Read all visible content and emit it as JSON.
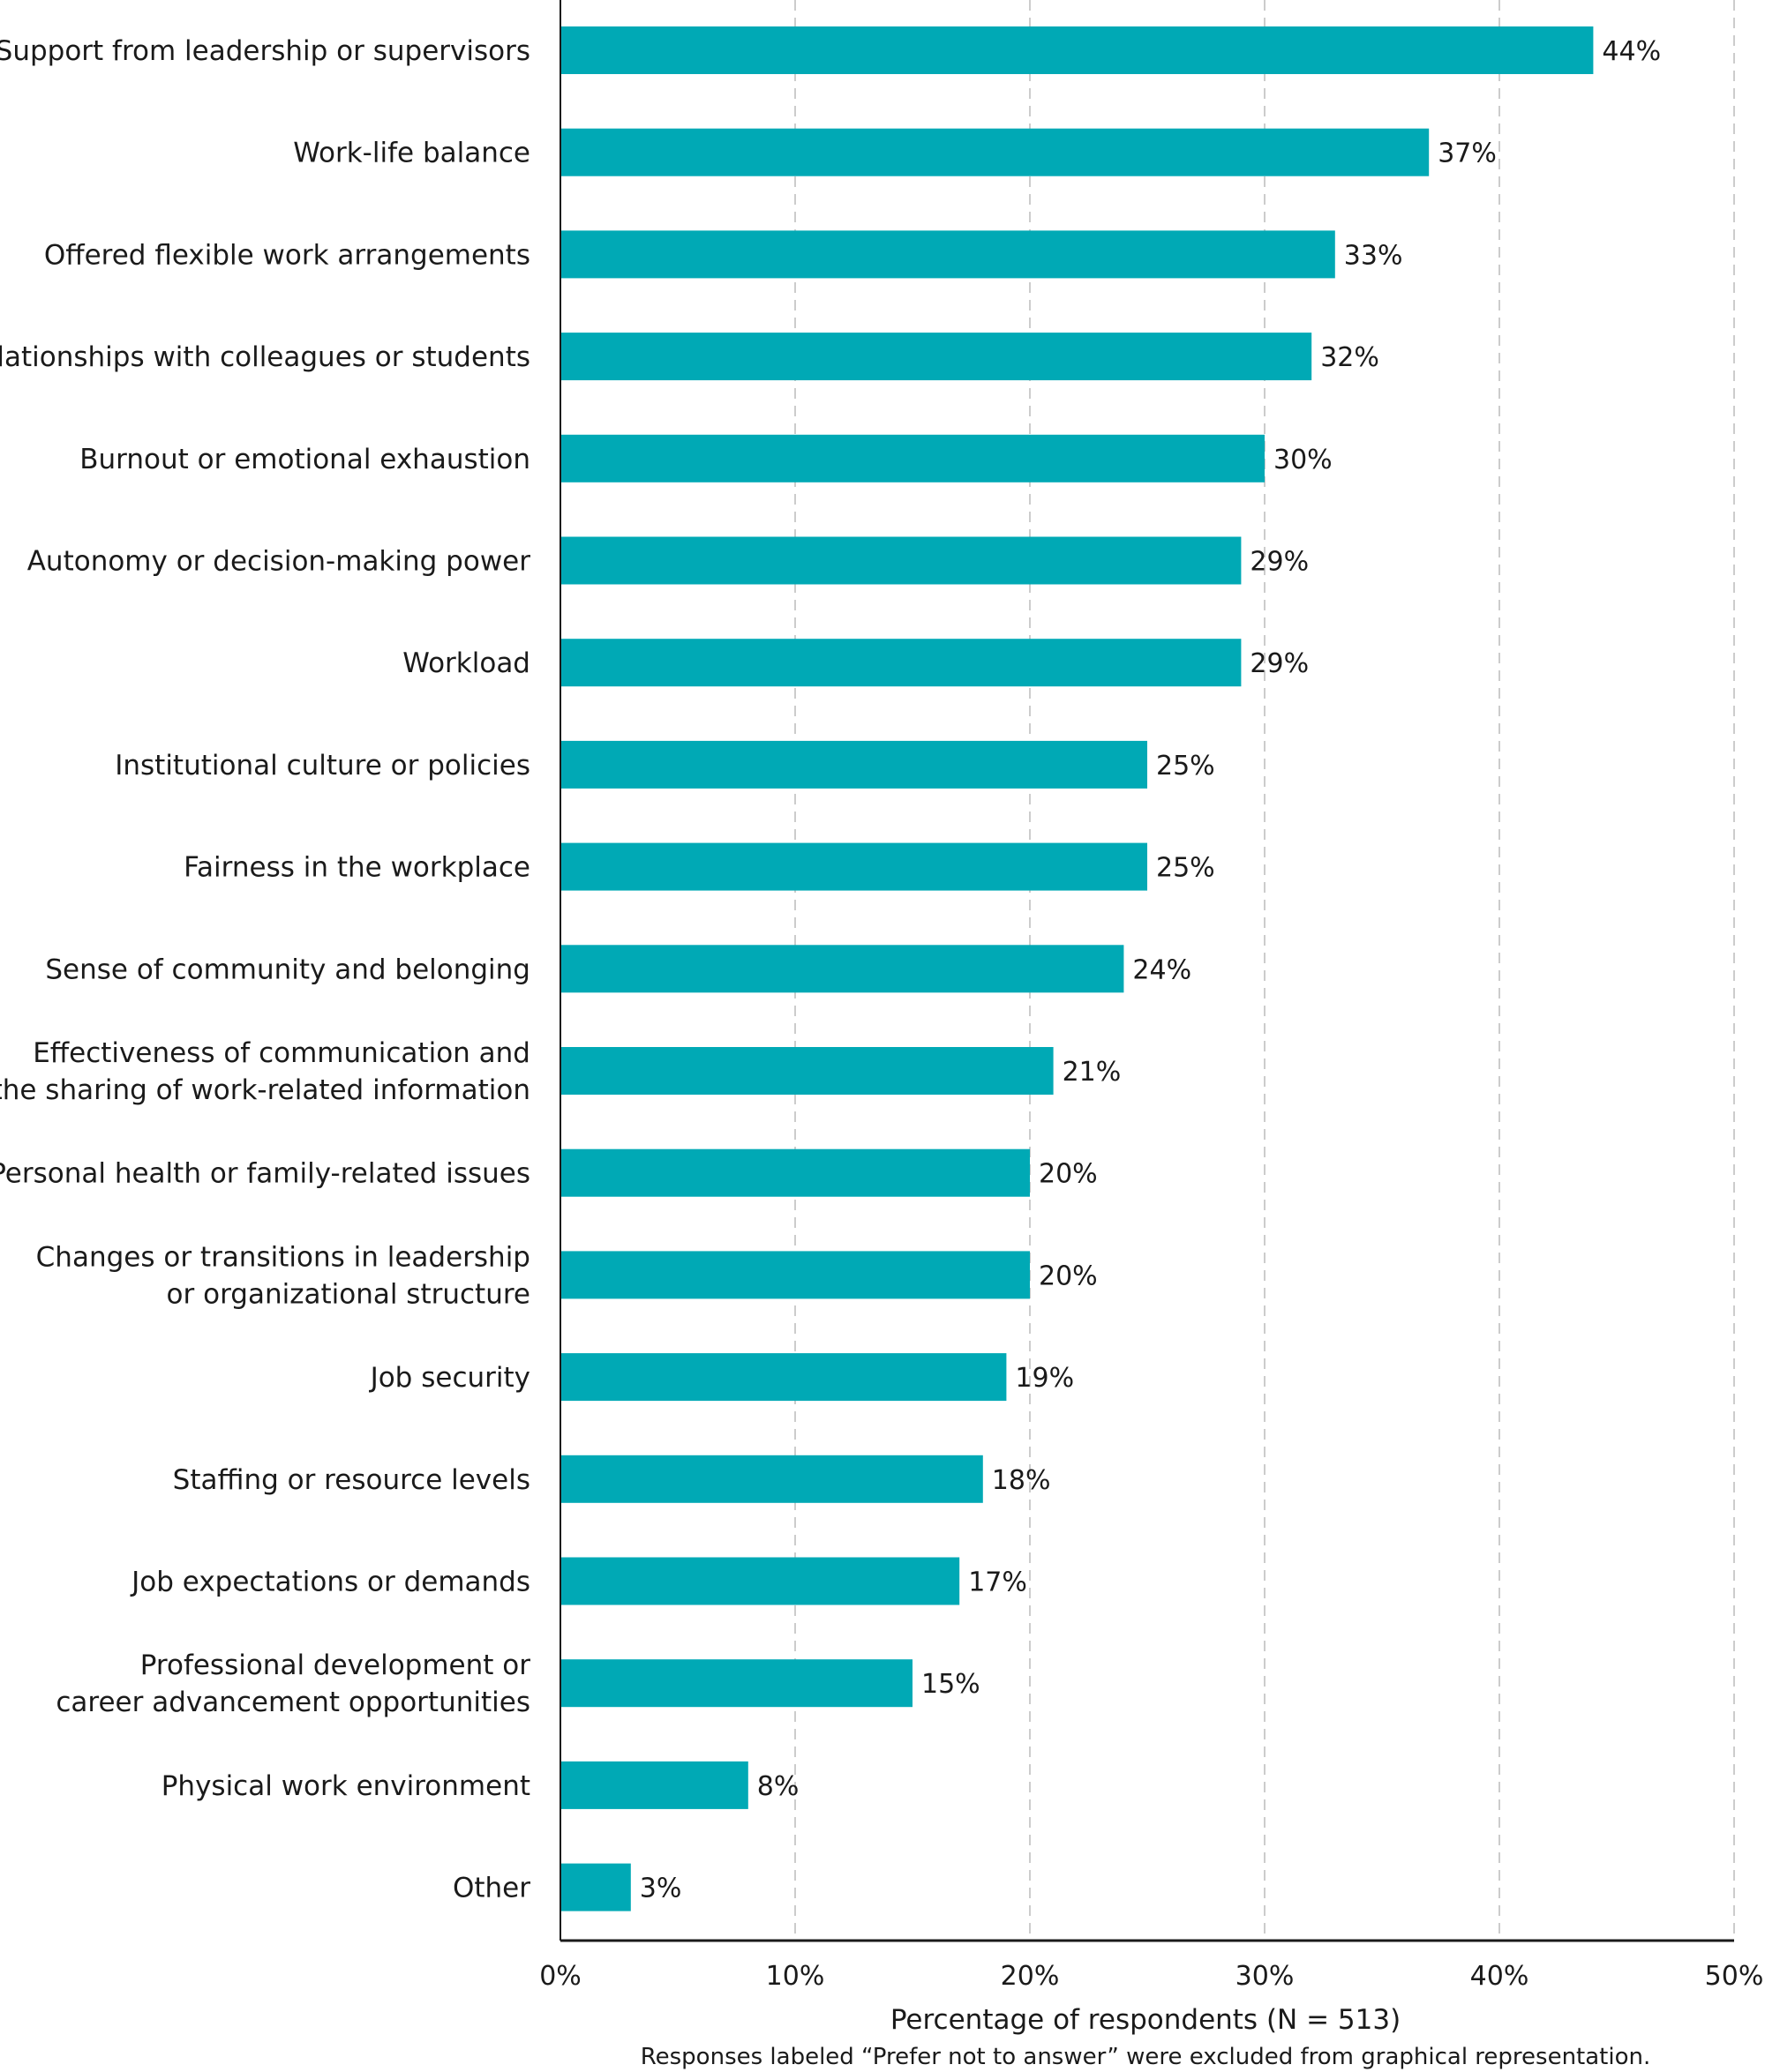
{
  "chart_data": {
    "type": "bar",
    "orientation": "horizontal",
    "categories": [
      [
        "Support from leadership or supervisors"
      ],
      [
        "Work-life balance"
      ],
      [
        "Offered flexible work arrangements"
      ],
      [
        "Relationships with colleagues or students"
      ],
      [
        "Burnout or emotional exhaustion"
      ],
      [
        "Autonomy or decision-making power"
      ],
      [
        "Workload"
      ],
      [
        "Institutional culture or policies"
      ],
      [
        "Fairness in the workplace"
      ],
      [
        "Sense of community and belonging"
      ],
      [
        "Effectiveness of communication and",
        "the sharing of work-related information"
      ],
      [
        "Personal health or family-related issues"
      ],
      [
        "Changes or transitions in leadership",
        "or organizational structure"
      ],
      [
        "Job security"
      ],
      [
        "Staffing or resource levels"
      ],
      [
        "Job expectations or demands"
      ],
      [
        "Professional development or",
        "career advancement opportunities"
      ],
      [
        "Physical work environment"
      ],
      [
        "Other"
      ]
    ],
    "values": [
      44,
      37,
      33,
      32,
      30,
      29,
      29,
      25,
      25,
      24,
      21,
      20,
      20,
      19,
      18,
      17,
      15,
      8,
      3
    ],
    "value_labels": [
      "44%",
      "37%",
      "33%",
      "32%",
      "30%",
      "29%",
      "29%",
      "25%",
      "25%",
      "24%",
      "21%",
      "20%",
      "20%",
      "19%",
      "18%",
      "17%",
      "15%",
      "8%",
      "3%"
    ],
    "xlim": [
      0,
      50
    ],
    "x_ticks": [
      0,
      10,
      20,
      30,
      40,
      50
    ],
    "x_tick_labels": [
      "0%",
      "10%",
      "20%",
      "30%",
      "40%",
      "50%"
    ],
    "xlabel": "Percentage of respondents (N = 513)",
    "footnote": "Responses labeled “Prefer not to answer” were excluded from graphical representation.",
    "grid": "vertical dashed",
    "bar_color": "#00A9B5",
    "grid_color": "#cccccc",
    "axis_color": "#1a1a1a"
  }
}
